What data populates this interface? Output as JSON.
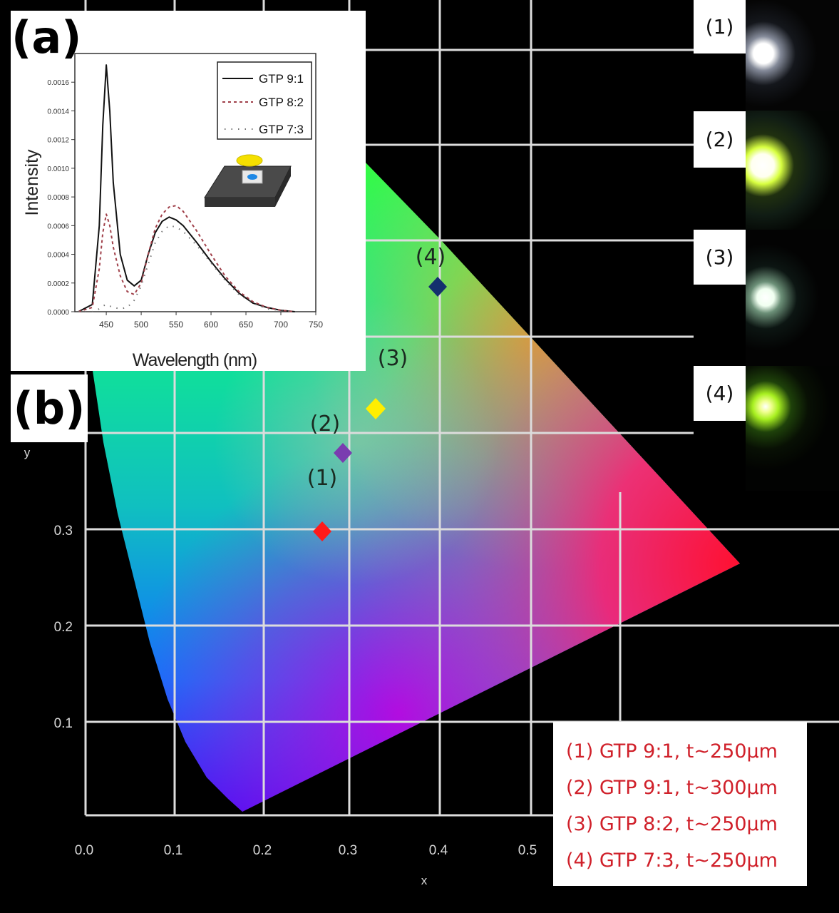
{
  "panel_labels": {
    "a": "(a)",
    "b": "(b)"
  },
  "cie": {
    "x_axis_title": "x",
    "y_axis_title": "y",
    "x_ticks": [
      "0.0",
      "0.1",
      "0.2",
      "0.3",
      "0.4",
      "0.5"
    ],
    "y_ticks": [
      "0.1",
      "0.2",
      "0.3"
    ],
    "grid_color": "#d9d9d9",
    "background": "#000000"
  },
  "inset": {
    "x_label": "Wavelength (nm)",
    "y_label": "Intensity",
    "x_ticks": [
      "450",
      "500",
      "550",
      "600",
      "650",
      "700",
      "750"
    ],
    "y_ticks": [
      "0.0000",
      "0.0002",
      "0.0004",
      "0.0006",
      "0.0008",
      "0.0010",
      "0.0012",
      "0.0014",
      "0.0016"
    ],
    "legend": [
      {
        "label": "GTP 9:1",
        "style": "solid",
        "color": "#111111"
      },
      {
        "label": "GTP 8:2",
        "style": "dashed",
        "color": "#a0404a"
      },
      {
        "label": "GTP 7:3",
        "style": "dotted",
        "color": "#707070"
      }
    ]
  },
  "led_photos": [
    {
      "label": "(1)",
      "glow": "#ffffff"
    },
    {
      "label": "(2)",
      "glow": "#e8ff70"
    },
    {
      "label": "(3)",
      "glow": "#e8fff0"
    },
    {
      "label": "(4)",
      "glow": "#b8ff40"
    }
  ],
  "legend": {
    "items": [
      "(1) GTP 9:1, t~250μm",
      "(2) GTP 9:1, t~300μm",
      "(3) GTP 8:2, t~250μm",
      "(4) GTP 7:3, t~250μm"
    ],
    "text_color": "#d0202a"
  },
  "chart_data": [
    {
      "type": "scatter",
      "title": "CIE 1931 chromaticity coordinates",
      "xlabel": "x",
      "ylabel": "y",
      "xlim": [
        0.0,
        0.5
      ],
      "ylim": [
        0.0,
        0.9
      ],
      "x_ticks": [
        0.0,
        0.1,
        0.2,
        0.3,
        0.4,
        0.5
      ],
      "y_ticks": [
        0.1,
        0.2,
        0.3
      ],
      "grid": true,
      "series": [
        {
          "name": "(1) GTP 9:1, t~250μm",
          "x": 0.27,
          "y": 0.3,
          "marker": "diamond",
          "color": "#ff1a1a"
        },
        {
          "name": "(2) GTP 9:1, t~300μm",
          "x": 0.29,
          "y": 0.38,
          "marker": "diamond",
          "color": "#7a3cb0"
        },
        {
          "name": "(3) GTP 8:2, t~250μm",
          "x": 0.33,
          "y": 0.43,
          "marker": "diamond",
          "color": "#ffee00"
        },
        {
          "name": "(4) GTP 7:3, t~250μm",
          "x": 0.4,
          "y": 0.55,
          "marker": "diamond",
          "color": "#14306e"
        }
      ]
    },
    {
      "type": "line",
      "title": "Emission spectra",
      "xlabel": "Wavelength (nm)",
      "ylabel": "Intensity",
      "xlim": [
        405,
        750
      ],
      "ylim": [
        0.0,
        0.0018
      ],
      "legend_position": "top-right",
      "x": [
        410,
        430,
        440,
        445,
        450,
        455,
        460,
        470,
        480,
        490,
        500,
        510,
        520,
        530,
        540,
        550,
        560,
        580,
        600,
        620,
        640,
        660,
        680,
        700,
        720
      ],
      "series": [
        {
          "name": "GTP 9:1",
          "values": [
            0.0,
            5e-05,
            0.0006,
            0.0013,
            0.00172,
            0.0014,
            0.0009,
            0.0004,
            0.00022,
            0.00018,
            0.00022,
            0.0004,
            0.00055,
            0.00063,
            0.00066,
            0.00064,
            0.0006,
            0.00048,
            0.00035,
            0.00023,
            0.00013,
            6e-05,
            3e-05,
            1e-05,
            0.0
          ]
        },
        {
          "name": "GTP 8:2",
          "values": [
            0.0,
            3e-05,
            0.0003,
            0.00055,
            0.00068,
            0.0006,
            0.00045,
            0.00025,
            0.00014,
            0.00012,
            0.0002,
            0.0004,
            0.00058,
            0.00068,
            0.00073,
            0.00074,
            0.0007,
            0.00056,
            0.0004,
            0.00025,
            0.00014,
            7e-05,
            3e-05,
            1e-05,
            0.0
          ]
        },
        {
          "name": "GTP 7:3",
          "values": [
            0.0,
            0.0,
            2e-05,
            4e-05,
            5e-05,
            4e-05,
            3e-05,
            2e-05,
            3e-05,
            8e-05,
            0.00018,
            0.00033,
            0.00048,
            0.00056,
            0.0006,
            0.00059,
            0.00056,
            0.00046,
            0.00034,
            0.00022,
            0.00012,
            6e-05,
            2e-05,
            1e-05,
            0.0
          ]
        }
      ]
    }
  ]
}
